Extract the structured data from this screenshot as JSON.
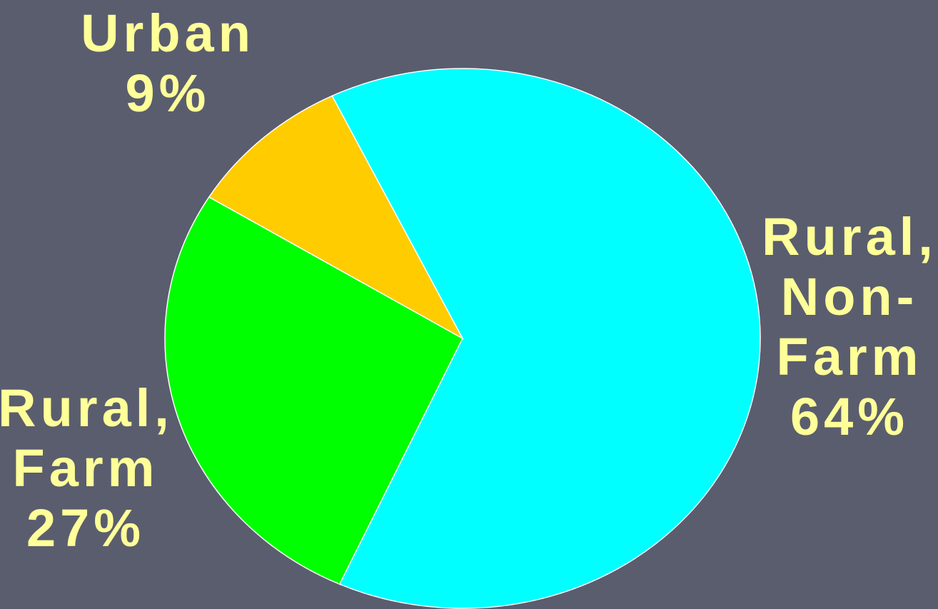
{
  "chart_data": {
    "type": "pie",
    "categories": [
      "Rural, Non-Farm",
      "Rural, Farm",
      "Urban"
    ],
    "values": [
      64,
      27,
      9
    ],
    "value_labels": [
      "64%",
      "27%",
      "9%"
    ],
    "colors": [
      "#00ffff",
      "#00ff00",
      "#ffcc00"
    ]
  }
}
